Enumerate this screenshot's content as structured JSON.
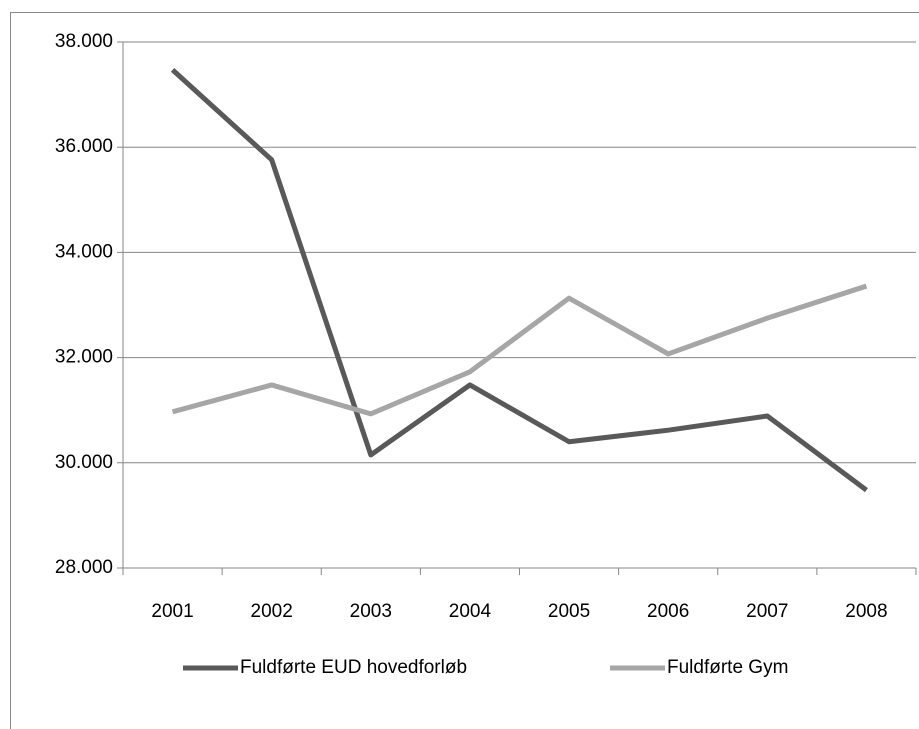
{
  "chart_data": {
    "type": "line",
    "categories": [
      "2001",
      "2002",
      "2003",
      "2004",
      "2005",
      "2006",
      "2007",
      "2008"
    ],
    "series": [
      {
        "name": "Fuldførte EUD hovedforløb",
        "color": "#595959",
        "values": [
          37470,
          35760,
          30150,
          31480,
          30400,
          30620,
          30890,
          29480
        ]
      },
      {
        "name": "Fuldførte Gym",
        "color": "#a6a6a6",
        "values": [
          30970,
          31480,
          30930,
          31730,
          33130,
          32070,
          32750,
          33360
        ]
      }
    ],
    "ylim": [
      28000,
      38000
    ],
    "yticks": [
      {
        "value": 28000,
        "label": "28.000"
      },
      {
        "value": 30000,
        "label": "30.000"
      },
      {
        "value": 32000,
        "label": "32.000"
      },
      {
        "value": 34000,
        "label": "34.000"
      },
      {
        "value": 36000,
        "label": "36.000"
      },
      {
        "value": 38000,
        "label": "38.000"
      }
    ],
    "grid": true,
    "legend": "bottom"
  }
}
